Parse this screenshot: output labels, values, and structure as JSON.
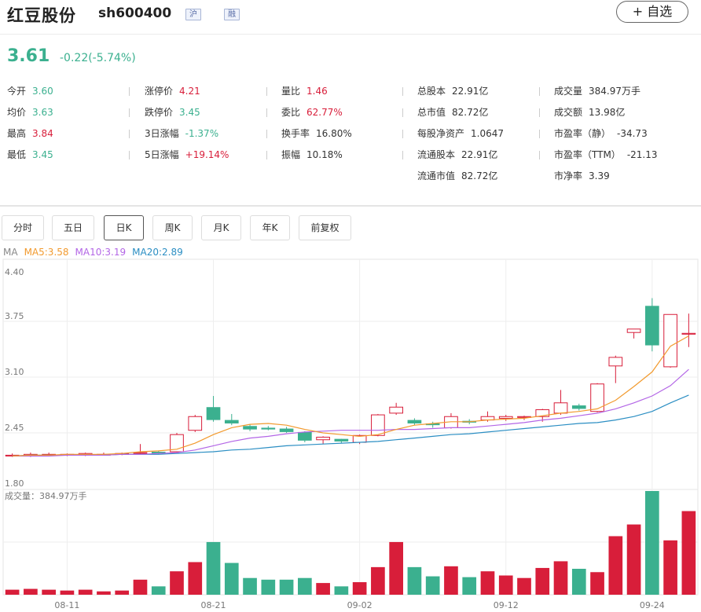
{
  "header": {
    "name": "红豆股份",
    "code": "sh600400",
    "tag_market": "沪",
    "tag_margin": "融",
    "add_button": "+ 自选"
  },
  "quote": {
    "price": "3.61",
    "change": "-0.22(-5.74%)"
  },
  "stats": [
    {
      "label": "今开",
      "value": "3.60",
      "color": "down"
    },
    {
      "label": "均价",
      "value": "3.63",
      "color": "down"
    },
    {
      "label": "最高",
      "value": "3.84",
      "color": "up"
    },
    {
      "label": "最低",
      "value": "3.45",
      "color": "down"
    },
    {
      "label": "涨停价",
      "value": "4.21",
      "color": "up"
    },
    {
      "label": "跌停价",
      "value": "3.45",
      "color": "down"
    },
    {
      "label": "3日涨幅",
      "value": "-1.37%",
      "color": "down"
    },
    {
      "label": "5日涨幅",
      "value": "+19.14%",
      "color": "up"
    },
    {
      "label": "量比",
      "value": "1.46",
      "color": "up"
    },
    {
      "label": "委比",
      "value": "62.77%",
      "color": "up"
    },
    {
      "label": "换手率",
      "value": "16.80%",
      "color": "neutral"
    },
    {
      "label": "振幅",
      "value": "10.18%",
      "color": "neutral"
    },
    {
      "label": "总股本",
      "value": "22.91亿",
      "color": "neutral"
    },
    {
      "label": "总市值",
      "value": "82.72亿",
      "color": "neutral"
    },
    {
      "label": "每股净资产",
      "value": "1.0647",
      "color": "neutral"
    },
    {
      "label": "流通股本",
      "value": "22.91亿",
      "color": "neutral"
    },
    {
      "label": "流通市值",
      "value": "82.72亿",
      "color": "neutral"
    },
    {
      "label": "成交量",
      "value": "384.97万手",
      "color": "neutral"
    },
    {
      "label": "成交额",
      "value": "13.98亿",
      "color": "neutral"
    },
    {
      "label": "市盈率（静）",
      "value": "-34.73",
      "color": "neutral"
    },
    {
      "label": "市盈率（TTM）",
      "value": "-21.13",
      "color": "neutral"
    },
    {
      "label": "市净率",
      "value": "3.39",
      "color": "neutral"
    }
  ],
  "tabs": [
    "分时",
    "五日",
    "日K",
    "周K",
    "月K",
    "年K",
    "前复权"
  ],
  "active_tab": "日K",
  "ma": {
    "label": "MA",
    "ma5": "MA5:3.58",
    "ma10": "MA10:3.19",
    "ma20": "MA20:2.89"
  },
  "colors": {
    "up": "#d81e3a",
    "down": "#3bb08f",
    "ma5": "#f29a2e",
    "ma10": "#b366e6",
    "ma20": "#2b8ec3"
  },
  "chart_data": {
    "type": "candlestick",
    "y_ticks": [
      "4.40",
      "3.75",
      "3.10",
      "2.45",
      "1.80"
    ],
    "ylim": [
      1.8,
      4.4
    ],
    "x_ticks": [
      {
        "label": "08-11",
        "index": 3
      },
      {
        "label": "08-21",
        "index": 11
      },
      {
        "label": "09-02",
        "index": 19
      },
      {
        "label": "09-12",
        "index": 27
      },
      {
        "label": "09-24",
        "index": 35
      }
    ],
    "volume_label": "成交量：384.97万手",
    "candles": [
      {
        "o": 2.18,
        "c": 2.19,
        "h": 2.21,
        "l": 2.17
      },
      {
        "o": 2.18,
        "c": 2.2,
        "h": 2.22,
        "l": 2.17
      },
      {
        "o": 2.19,
        "c": 2.2,
        "h": 2.22,
        "l": 2.18
      },
      {
        "o": 2.19,
        "c": 2.2,
        "h": 2.21,
        "l": 2.18
      },
      {
        "o": 2.19,
        "c": 2.21,
        "h": 2.22,
        "l": 2.18
      },
      {
        "o": 2.2,
        "c": 2.2,
        "h": 2.22,
        "l": 2.19
      },
      {
        "o": 2.2,
        "c": 2.21,
        "h": 2.22,
        "l": 2.19
      },
      {
        "o": 2.21,
        "c": 2.22,
        "h": 2.32,
        "l": 2.2
      },
      {
        "o": 2.23,
        "c": 2.21,
        "h": 2.24,
        "l": 2.2
      },
      {
        "o": 2.23,
        "c": 2.43,
        "h": 2.45,
        "l": 2.22
      },
      {
        "o": 2.48,
        "c": 2.64,
        "h": 2.66,
        "l": 2.46
      },
      {
        "o": 2.75,
        "c": 2.6,
        "h": 2.88,
        "l": 2.58
      },
      {
        "o": 2.6,
        "c": 2.56,
        "h": 2.67,
        "l": 2.54
      },
      {
        "o": 2.53,
        "c": 2.49,
        "h": 2.55,
        "l": 2.47
      },
      {
        "o": 2.51,
        "c": 2.49,
        "h": 2.53,
        "l": 2.48
      },
      {
        "o": 2.5,
        "c": 2.46,
        "h": 2.52,
        "l": 2.45
      },
      {
        "o": 2.46,
        "c": 2.36,
        "h": 2.47,
        "l": 2.34
      },
      {
        "o": 2.37,
        "c": 2.4,
        "h": 2.41,
        "l": 2.32
      },
      {
        "o": 2.38,
        "c": 2.35,
        "h": 2.38,
        "l": 2.33
      },
      {
        "o": 2.34,
        "c": 2.42,
        "h": 2.43,
        "l": 2.32
      },
      {
        "o": 2.42,
        "c": 2.66,
        "h": 2.67,
        "l": 2.41
      },
      {
        "o": 2.68,
        "c": 2.75,
        "h": 2.8,
        "l": 2.66
      },
      {
        "o": 2.6,
        "c": 2.56,
        "h": 2.62,
        "l": 2.54
      },
      {
        "o": 2.56,
        "c": 2.54,
        "h": 2.58,
        "l": 2.51
      },
      {
        "o": 2.51,
        "c": 2.64,
        "h": 2.68,
        "l": 2.5
      },
      {
        "o": 2.59,
        "c": 2.57,
        "h": 2.61,
        "l": 2.55
      },
      {
        "o": 2.6,
        "c": 2.64,
        "h": 2.7,
        "l": 2.58
      },
      {
        "o": 2.62,
        "c": 2.64,
        "h": 2.66,
        "l": 2.59
      },
      {
        "o": 2.63,
        "c": 2.64,
        "h": 2.65,
        "l": 2.6
      },
      {
        "o": 2.64,
        "c": 2.72,
        "h": 2.73,
        "l": 2.58
      },
      {
        "o": 2.68,
        "c": 2.8,
        "h": 2.95,
        "l": 2.66
      },
      {
        "o": 2.77,
        "c": 2.73,
        "h": 2.79,
        "l": 2.71
      },
      {
        "o": 2.7,
        "c": 3.02,
        "h": 3.03,
        "l": 2.69
      },
      {
        "o": 3.23,
        "c": 3.33,
        "h": 3.35,
        "l": 3.03
      },
      {
        "o": 3.62,
        "c": 3.66,
        "h": 3.66,
        "l": 3.55
      },
      {
        "o": 3.93,
        "c": 3.47,
        "h": 4.02,
        "l": 3.4
      },
      {
        "o": 3.22,
        "c": 3.83,
        "h": 3.83,
        "l": 3.21
      },
      {
        "o": 3.6,
        "c": 3.61,
        "h": 3.84,
        "l": 3.45
      }
    ],
    "volumes": [
      6,
      7,
      6,
      5,
      6,
      4,
      5,
      18,
      10,
      28,
      39,
      63,
      38,
      20,
      18,
      18,
      20,
      14,
      10,
      15,
      33,
      63,
      33,
      22,
      34,
      21,
      28,
      23,
      20,
      32,
      40,
      31,
      27,
      70,
      84,
      124,
      65,
      100
    ],
    "vol_max": 124,
    "ma5": [
      2.18,
      2.19,
      2.19,
      2.2,
      2.2,
      2.2,
      2.21,
      2.23,
      2.24,
      2.26,
      2.33,
      2.43,
      2.51,
      2.55,
      2.56,
      2.54,
      2.49,
      2.45,
      2.43,
      2.41,
      2.43,
      2.49,
      2.54,
      2.56,
      2.58,
      2.58,
      2.6,
      2.61,
      2.62,
      2.65,
      2.68,
      2.7,
      2.73,
      2.83,
      2.99,
      3.16,
      3.46,
      3.58
    ],
    "ma10": [
      2.18,
      2.18,
      2.18,
      2.19,
      2.19,
      2.19,
      2.2,
      2.2,
      2.21,
      2.22,
      2.25,
      2.3,
      2.35,
      2.39,
      2.41,
      2.44,
      2.46,
      2.47,
      2.48,
      2.48,
      2.48,
      2.49,
      2.49,
      2.5,
      2.51,
      2.51,
      2.53,
      2.55,
      2.57,
      2.6,
      2.62,
      2.65,
      2.68,
      2.73,
      2.8,
      2.88,
      3.0,
      3.19
    ],
    "ma20": [
      2.18,
      2.19,
      2.19,
      2.19,
      2.19,
      2.19,
      2.2,
      2.2,
      2.2,
      2.21,
      2.22,
      2.23,
      2.25,
      2.26,
      2.28,
      2.3,
      2.31,
      2.32,
      2.33,
      2.34,
      2.35,
      2.37,
      2.39,
      2.41,
      2.43,
      2.44,
      2.46,
      2.48,
      2.5,
      2.52,
      2.54,
      2.56,
      2.57,
      2.6,
      2.64,
      2.7,
      2.8,
      2.89
    ]
  }
}
